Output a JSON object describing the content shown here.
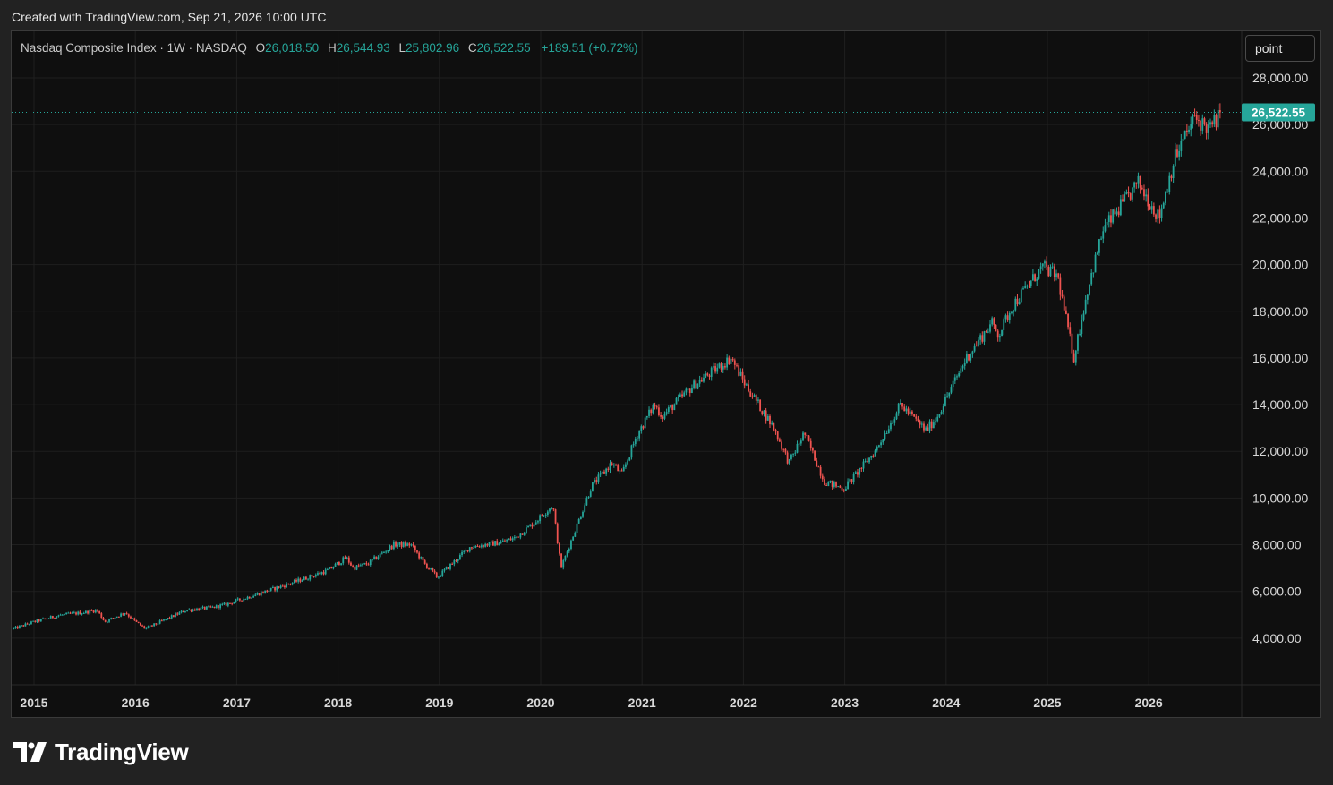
{
  "header": {
    "created_text": "Created with TradingView.com, Sep 21, 2026 10:00 UTC"
  },
  "legend": {
    "symbol": "Nasdaq Composite Index · 1W · NASDAQ",
    "o_label": "O",
    "o_value": "26,018.50",
    "h_label": "H",
    "h_value": "26,544.93",
    "l_label": "L",
    "l_value": "25,802.96",
    "c_label": "C",
    "c_value": "26,522.55",
    "change": "+189.51 (+0.72%)"
  },
  "scale_button": {
    "label": "point"
  },
  "last_price": {
    "label": "26,522.55",
    "value": 26522.55
  },
  "brand": {
    "name": "TradingView",
    "icon": "tradingview-logo-icon"
  },
  "colors": {
    "up": "#26a69a",
    "down": "#ef5350",
    "background": "#0f0f0f",
    "grid": "#1f1f1f"
  },
  "chart_data": {
    "type": "candlestick",
    "interval": "1W",
    "y_axis": {
      "ticks": [
        4000,
        6000,
        8000,
        10000,
        12000,
        14000,
        16000,
        18000,
        20000,
        22000,
        24000,
        26000,
        28000
      ],
      "tick_labels": [
        "4,000.00",
        "6,000.00",
        "8,000.00",
        "10,000.00",
        "12,000.00",
        "14,000.00",
        "16,000.00",
        "18,000.00",
        "20,000.00",
        "22,000.00",
        "24,000.00",
        "26,000.00",
        "28,000.00"
      ],
      "range": [
        2000,
        29000
      ],
      "scale": "linear"
    },
    "x_axis": {
      "ticks": [
        2015,
        2016,
        2017,
        2018,
        2019,
        2020,
        2021,
        2022,
        2023,
        2024,
        2025,
        2026
      ],
      "tick_labels": [
        "2015",
        "2016",
        "2017",
        "2018",
        "2019",
        "2020",
        "2021",
        "2022",
        "2023",
        "2024",
        "2025",
        "2026"
      ],
      "range": [
        2014.8,
        2026.95
      ]
    },
    "grid": true,
    "series": [
      {
        "x": [
          2014.8,
          2015.0,
          2015.25,
          2015.5,
          2015.62,
          2015.7,
          2015.9,
          2016.0,
          2016.1,
          2016.3,
          2016.5,
          2016.75,
          2016.9,
          2017.0,
          2017.5,
          2017.9,
          2018.08,
          2018.15,
          2018.3,
          2018.55,
          2018.72,
          2018.85,
          2018.98,
          2019.3,
          2019.6,
          2019.75,
          2019.95,
          2020.12,
          2020.2,
          2020.5,
          2020.7,
          2020.8,
          2020.95,
          2021.12,
          2021.2,
          2021.5,
          2021.88,
          2022.0,
          2022.3,
          2022.45,
          2022.6,
          2022.8,
          2022.99,
          2023.3,
          2023.55,
          2023.8,
          2023.9,
          2024.2,
          2024.45,
          2024.52,
          2024.65,
          2024.95,
          2025.1,
          2025.26,
          2025.4,
          2025.55,
          2025.9,
          2026.1,
          2026.25,
          2026.45,
          2026.6,
          2026.72
        ],
        "close": [
          4400,
          4700,
          4980,
          5100,
          5200,
          4700,
          5100,
          4700,
          4400,
          4800,
          5200,
          5300,
          5450,
          5600,
          6300,
          6900,
          7450,
          7000,
          7200,
          8000,
          8000,
          7200,
          6600,
          7900,
          8100,
          8300,
          9000,
          9700,
          7000,
          10500,
          11500,
          11000,
          12700,
          14000,
          13500,
          14800,
          16000,
          15000,
          13000,
          11500,
          12800,
          10700,
          10400,
          12000,
          14000,
          12900,
          13400,
          16000,
          17500,
          17000,
          18200,
          19900,
          19500,
          16000,
          19000,
          21500,
          23500,
          22000,
          24500,
          26300,
          25800,
          26522.55
        ]
      }
    ]
  }
}
